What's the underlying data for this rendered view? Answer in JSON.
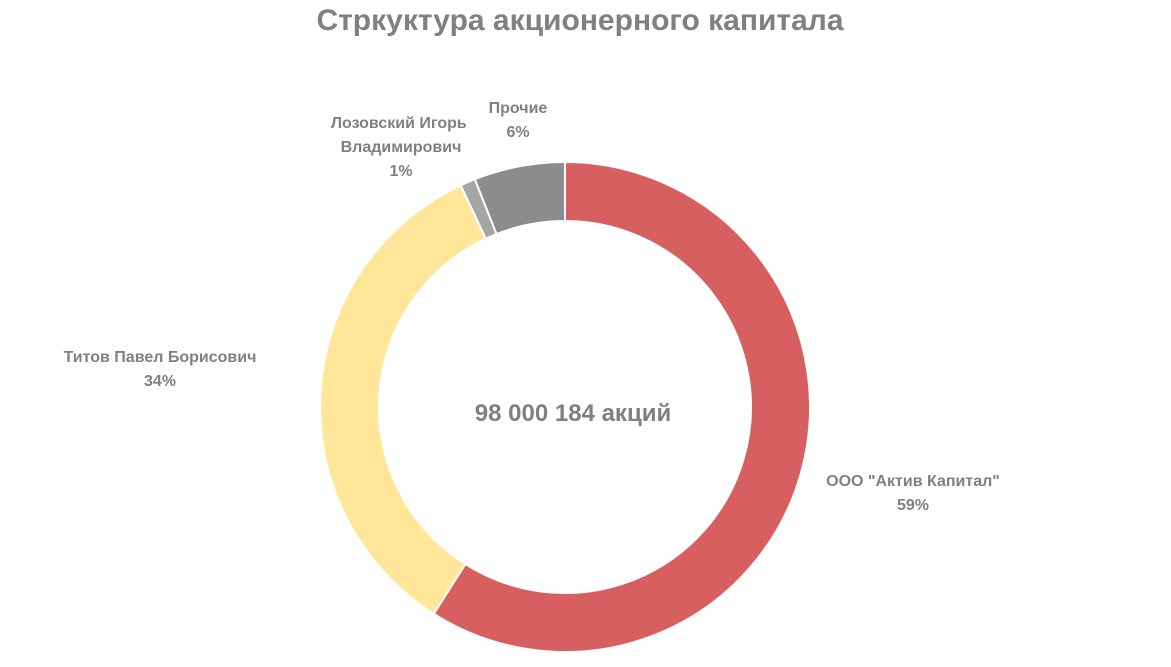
{
  "chart_data": {
    "type": "pie",
    "title": "Стркуктура акционерного капитала",
    "center_label": "98 000 184 акций",
    "categories": [
      "ООО \"Актив Капитал\"",
      "Титов Павел Борисович",
      "Лозовский Игорь Владимирович",
      "Прочие"
    ],
    "values": [
      59,
      34,
      1,
      6
    ],
    "value_labels": [
      "59%",
      "34%",
      "1%",
      "6%"
    ],
    "colors": [
      "#d75f5f",
      "#ffe699",
      "#a5a5a5",
      "#8c8c8c"
    ],
    "legend": "none"
  }
}
